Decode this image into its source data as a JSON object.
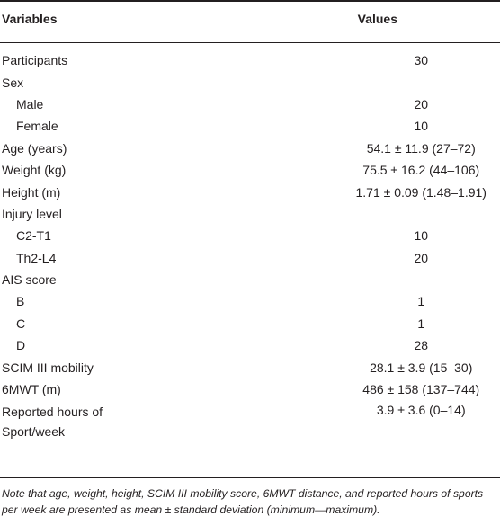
{
  "header": {
    "variables": "Variables",
    "values": "Values"
  },
  "rows": [
    {
      "label": "Participants",
      "value": "30",
      "indent": false
    },
    {
      "label": "Sex",
      "value": "",
      "indent": false
    },
    {
      "label": "Male",
      "value": "20",
      "indent": true
    },
    {
      "label": "Female",
      "value": "10",
      "indent": true
    },
    {
      "label": "Age (years)",
      "value": "54.1 ± 11.9 (27–72)",
      "indent": false
    },
    {
      "label": "Weight (kg)",
      "value": "75.5 ± 16.2 (44–106)",
      "indent": false
    },
    {
      "label": "Height (m)",
      "value": "1.71 ± 0.09 (1.48–1.91)",
      "indent": false
    },
    {
      "label": "Injury level",
      "value": "",
      "indent": false
    },
    {
      "label": "C2-T1",
      "value": "10",
      "indent": true
    },
    {
      "label": "Th2-L4",
      "value": "20",
      "indent": true
    },
    {
      "label": "AIS score",
      "value": "",
      "indent": false
    },
    {
      "label": "B",
      "value": "1",
      "indent": true
    },
    {
      "label": "C",
      "value": "1",
      "indent": true
    },
    {
      "label": "D",
      "value": "28",
      "indent": true
    },
    {
      "label": "SCIM III mobility",
      "value": "28.1 ± 3.9 (15–30)",
      "indent": false
    },
    {
      "label": "6MWT (m)",
      "value": "486 ± 158 (137–744)",
      "indent": false
    }
  ],
  "last_row": {
    "label_line1": "Reported hours of",
    "label_line2": "Sport/week",
    "value": "3.9 ± 3.6 (0–14)"
  },
  "note": "Note that age, weight, height, SCIM III mobility score, 6MWT distance, and reported hours of sports per week are presented as mean ± standard deviation (minimum—maximum)."
}
